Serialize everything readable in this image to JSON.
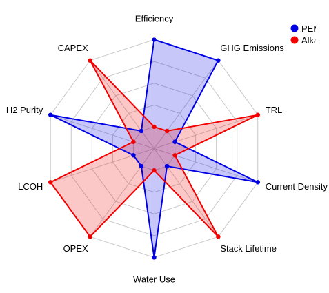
{
  "chart_data": {
    "type": "radar",
    "axes": [
      "Efficiency",
      "GHG Emissions",
      "TRL",
      "Current Density",
      "Stack Lifetime",
      "Water Use",
      "OPEX",
      "LCOH",
      "H2 Purity",
      "CAPEX"
    ],
    "rlim": [
      0,
      5
    ],
    "rings": 5,
    "grid": true,
    "legend_position": "top-right",
    "series": [
      {
        "name": "PEM",
        "color": "#0000e6",
        "fill": "rgba(0,0,230,0.22)",
        "values": [
          5,
          5,
          1,
          5,
          1,
          5,
          1,
          1,
          5,
          1
        ]
      },
      {
        "name": "Alkaline",
        "color": "#f20000",
        "fill": "rgba(242,0,0,0.22)",
        "values": [
          1,
          1,
          5,
          1,
          5,
          1,
          5,
          5,
          1,
          5
        ]
      }
    ],
    "legend_visible_text": [
      "PEM",
      "Alka"
    ]
  }
}
